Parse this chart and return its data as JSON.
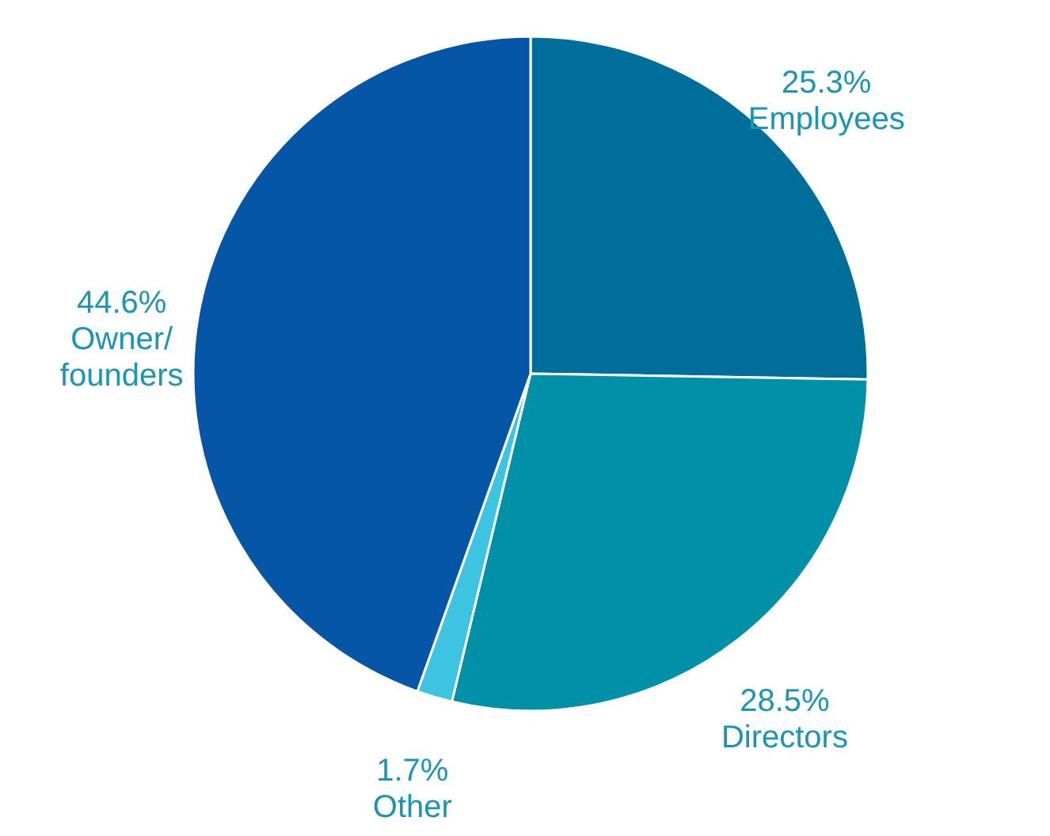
{
  "chart_data": {
    "type": "pie",
    "categories": [
      "Employees",
      "Directors",
      "Other",
      "Owner/founders"
    ],
    "values": [
      25.3,
      28.5,
      1.7,
      44.6
    ],
    "value_labels": [
      "25.3%",
      "28.5%",
      "1.7%",
      "44.6%"
    ],
    "colors": [
      "#006e9a",
      "#0090a8",
      "#3cc4e0",
      "#0656a8"
    ]
  }
}
